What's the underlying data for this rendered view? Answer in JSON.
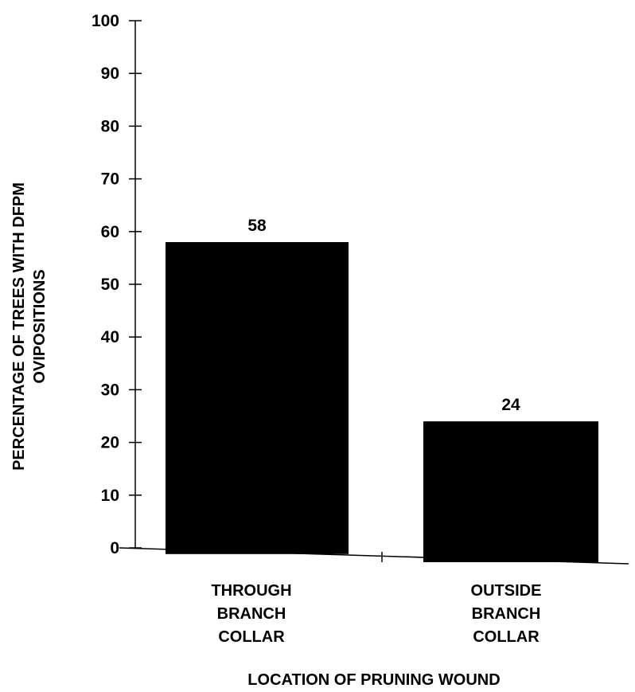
{
  "chart_data": {
    "type": "bar",
    "title": "",
    "xlabel": "LOCATION OF PRUNING WOUND",
    "ylabel": [
      "PERCENTAGE OF TREES WITH DFPM",
      "OVIPOSITIONS"
    ],
    "ylim": [
      0,
      100
    ],
    "yticks": [
      "0",
      "10",
      "20",
      "30",
      "40",
      "50",
      "60",
      "70",
      "80",
      "90",
      "100"
    ],
    "categories": [
      [
        "THROUGH",
        "BRANCH",
        "COLLAR"
      ],
      [
        "OUTSIDE",
        "BRANCH",
        "COLLAR"
      ]
    ],
    "values": [
      58,
      24
    ],
    "data_labels": [
      "58",
      "24"
    ],
    "bar_color": "#000000",
    "grid": false,
    "legend": "none"
  }
}
